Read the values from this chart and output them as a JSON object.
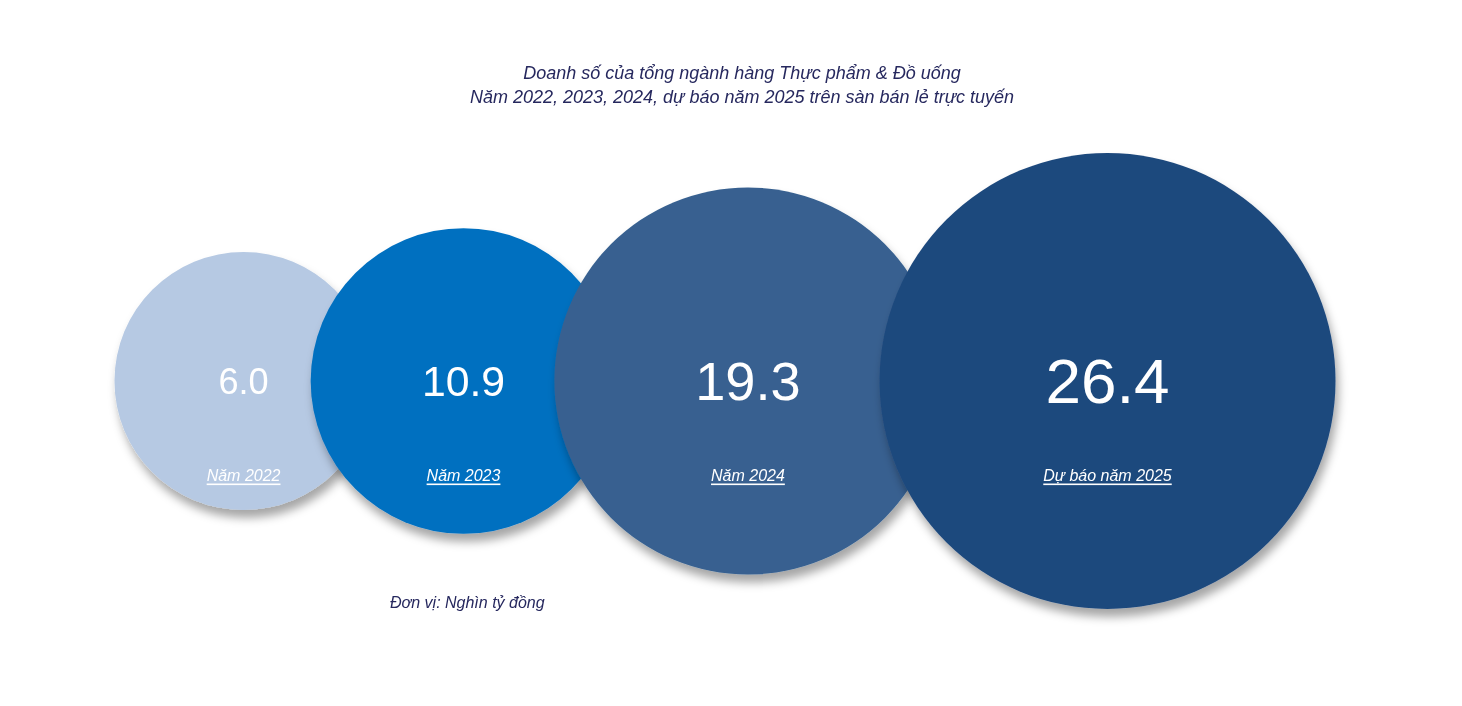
{
  "chart_data": {
    "type": "other",
    "title": "Doanh số của tổng ngành hàng Thực phẩm & Đồ uống",
    "subtitle": "Năm 2022, 2023, 2024, dự báo năm 2025 trên sàn bán lẻ trực tuyến",
    "categories": [
      "Năm 2022",
      "Năm 2023",
      "Năm 2024",
      "Dự báo năm 2025"
    ],
    "values": [
      6.0,
      10.9,
      19.3,
      26.4
    ],
    "value_labels": [
      "6.0",
      "10.9",
      "19.3",
      "26.4"
    ],
    "colors": [
      "#b6c9e3",
      "#0070c0",
      "#376190",
      "#1f497d"
    ],
    "annotations": [
      "Đơn vị: Nghìn tỷ đồng"
    ]
  }
}
